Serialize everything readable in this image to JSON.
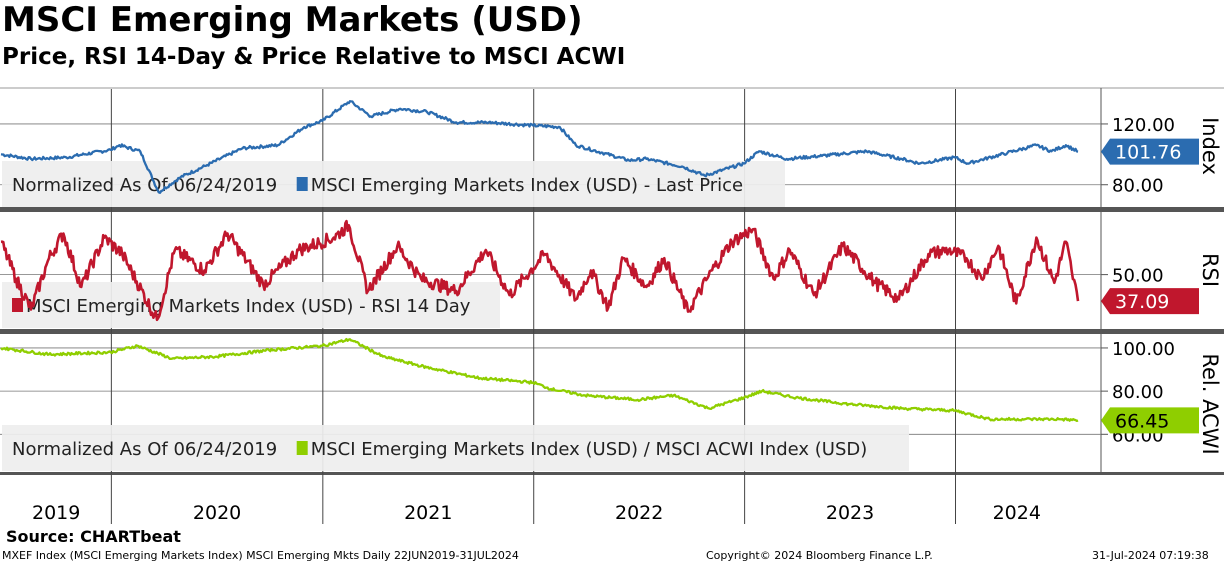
{
  "title": "MSCI Emerging Markets (USD)",
  "subtitle": "Price, RSI 14-Day & Price Relative to MSCI ACWI",
  "source": "Source: CHARTbeat",
  "footer": {
    "left": "MXEF Index (MSCI Emerging Markets Index) MSCI Emerging Mkts  Daily 22JUN2019-31JUL2024",
    "middle": "Copyright© 2024 Bloomberg Finance L.P.",
    "right": "31-Jul-2024 07:19:38"
  },
  "colors": {
    "price": "#2b6cb0",
    "rsi": "#c0172d",
    "relative": "#8fce00",
    "legend_bg": "#eeeeee",
    "separator": "#555555"
  },
  "x_axis": {
    "years": [
      "2019",
      "2020",
      "2021",
      "2022",
      "2023",
      "2024"
    ],
    "range": [
      "2019-06-24",
      "2024-07-31"
    ]
  },
  "chart_data": [
    {
      "type": "line",
      "ylabel": "Index",
      "ylim": [
        66,
        143
      ],
      "yticks": [
        "120.00",
        "80.00"
      ],
      "legend": [
        "Normalized As Of 06/24/2019",
        "MSCI Emerging Markets Index (USD) - Last Price"
      ],
      "last_value_label": "101.76",
      "series": [
        {
          "name": "MSCI Emerging Markets Index (USD) - Last Price",
          "x": [
            "2019-06-24",
            "2019-08-15",
            "2019-10-15",
            "2019-12-31",
            "2020-01-15",
            "2020-02-20",
            "2020-03-23",
            "2020-04-30",
            "2020-06-15",
            "2020-08-15",
            "2020-10-15",
            "2020-11-30",
            "2020-12-31",
            "2021-02-17",
            "2021-03-25",
            "2021-05-15",
            "2021-06-30",
            "2021-08-20",
            "2021-10-15",
            "2021-12-31",
            "2022-02-15",
            "2022-03-15",
            "2022-04-30",
            "2022-06-15",
            "2022-07-15",
            "2022-09-15",
            "2022-10-24",
            "2022-12-31",
            "2023-01-26",
            "2023-03-15",
            "2023-05-15",
            "2023-07-31",
            "2023-09-30",
            "2023-10-31",
            "2023-12-31",
            "2024-01-22",
            "2024-03-31",
            "2024-05-20",
            "2024-06-15",
            "2024-07-10",
            "2024-07-31"
          ],
          "values": [
            100,
            97,
            98,
            103,
            106,
            102,
            75,
            85,
            93,
            104,
            106,
            118,
            122,
            135,
            125,
            130,
            128,
            121,
            121,
            119,
            118,
            106,
            101,
            96,
            97,
            92,
            86,
            94,
            102,
            97,
            99,
            102,
            97,
            94,
            98,
            94,
            101,
            106,
            102,
            106,
            101.76
          ]
        }
      ]
    },
    {
      "type": "line",
      "ylabel": "RSI",
      "ylim": [
        24,
        80
      ],
      "yticks": [
        "50.00"
      ],
      "legend": [
        "MSCI Emerging Markets Index (USD) - RSI 14 Day"
      ],
      "last_value_label": "37.09",
      "series": [
        {
          "name": "MSCI Emerging Markets Index (USD) - RSI 14 Day",
          "x": [
            "2019-06-24",
            "2019-07-20",
            "2019-08-15",
            "2019-09-15",
            "2019-10-10",
            "2019-11-10",
            "2019-12-20",
            "2020-01-20",
            "2020-03-20",
            "2020-04-20",
            "2020-06-10",
            "2020-07-20",
            "2020-09-20",
            "2020-11-20",
            "2021-01-20",
            "2021-02-15",
            "2021-03-20",
            "2021-05-10",
            "2021-06-20",
            "2021-08-20",
            "2021-10-10",
            "2021-11-20",
            "2022-01-20",
            "2022-03-15",
            "2022-04-10",
            "2022-05-10",
            "2022-06-05",
            "2022-07-15",
            "2022-08-15",
            "2022-09-25",
            "2022-11-10",
            "2022-12-10",
            "2023-01-15",
            "2023-02-20",
            "2023-03-20",
            "2023-05-01",
            "2023-06-20",
            "2023-08-15",
            "2023-09-25",
            "2023-11-15",
            "2023-12-20",
            "2024-01-20",
            "2024-02-15",
            "2024-03-15",
            "2024-04-15",
            "2024-05-20",
            "2024-06-20",
            "2024-07-10",
            "2024-07-20",
            "2024-07-31"
          ],
          "values": [
            66,
            48,
            33,
            58,
            70,
            44,
            68,
            60,
            28,
            62,
            52,
            70,
            45,
            62,
            68,
            74,
            42,
            64,
            48,
            42,
            62,
            40,
            60,
            38,
            52,
            34,
            58,
            44,
            58,
            32,
            54,
            66,
            72,
            48,
            62,
            40,
            64,
            46,
            38,
            60,
            62,
            58,
            48,
            64,
            36,
            68,
            46,
            66,
            52,
            37.09
          ]
        }
      ]
    },
    {
      "type": "line",
      "ylabel": "Rel. ACWI",
      "ylim": [
        43,
        106
      ],
      "yticks": [
        "100.00",
        "80.00",
        "60.00"
      ],
      "legend": [
        "Normalized As Of 06/24/2019",
        "MSCI Emerging Markets Index (USD) / MSCI ACWI Index (USD)"
      ],
      "last_value_label": "66.45",
      "series": [
        {
          "name": "MSCI Emerging Markets Index (USD) / MSCI ACWI Index (USD)",
          "x": [
            "2019-06-24",
            "2019-09-15",
            "2019-12-31",
            "2020-02-15",
            "2020-04-15",
            "2020-06-30",
            "2020-09-30",
            "2020-12-31",
            "2021-02-17",
            "2021-04-15",
            "2021-06-30",
            "2021-09-30",
            "2021-12-31",
            "2022-01-31",
            "2022-03-31",
            "2022-06-30",
            "2022-08-31",
            "2022-10-31",
            "2022-12-31",
            "2023-01-31",
            "2023-03-31",
            "2023-06-30",
            "2023-09-30",
            "2023-12-31",
            "2024-02-29",
            "2024-04-30",
            "2024-06-30",
            "2024-07-31"
          ],
          "values": [
            100,
            97,
            98,
            101,
            95,
            96,
            99,
            101,
            104,
            96,
            91,
            86,
            84,
            81,
            78,
            76,
            78,
            72,
            77,
            80,
            77,
            74,
            72,
            71,
            67,
            67,
            67,
            66.45
          ]
        }
      ]
    }
  ]
}
